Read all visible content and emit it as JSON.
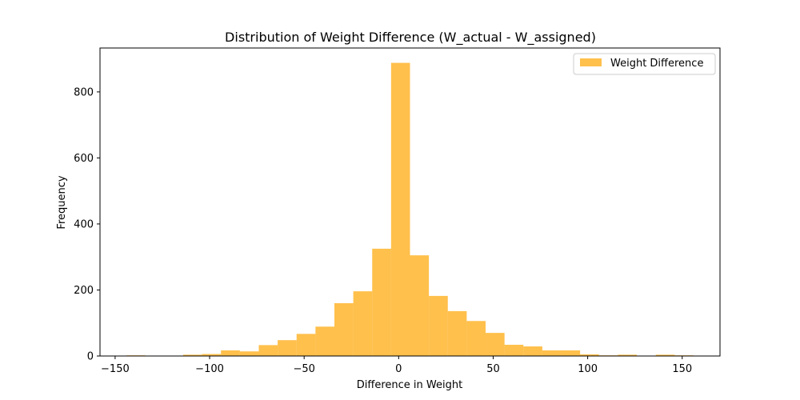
{
  "chart_data": {
    "type": "bar",
    "title": "Distribution of Weight Difference (W_actual - W_assigned)",
    "xlabel": "Difference in Weight",
    "ylabel": "Frequency",
    "xlim": [
      -158,
      170
    ],
    "ylim": [
      0,
      933
    ],
    "xticks": [
      -150,
      -100,
      -50,
      0,
      50,
      100,
      150
    ],
    "yticks": [
      0,
      200,
      400,
      600,
      800
    ],
    "grid": false,
    "legend_position": "top-right",
    "bar_color": "#ffa500",
    "bar_opacity": 0.7,
    "series": [
      {
        "name": "Weight Difference",
        "bins": [
          {
            "x0": -144,
            "x1": -134,
            "value": 2
          },
          {
            "x0": -134,
            "x1": -124,
            "value": 1
          },
          {
            "x0": -124,
            "x1": -114,
            "value": 1
          },
          {
            "x0": -114,
            "x1": -104,
            "value": 4
          },
          {
            "x0": -104,
            "x1": -94,
            "value": 6
          },
          {
            "x0": -94,
            "x1": -84,
            "value": 17
          },
          {
            "x0": -84,
            "x1": -74,
            "value": 14
          },
          {
            "x0": -74,
            "x1": -64,
            "value": 33
          },
          {
            "x0": -64,
            "x1": -54,
            "value": 48
          },
          {
            "x0": -54,
            "x1": -44,
            "value": 67
          },
          {
            "x0": -44,
            "x1": -34,
            "value": 89
          },
          {
            "x0": -34,
            "x1": -24,
            "value": 160
          },
          {
            "x0": -24,
            "x1": -14,
            "value": 196
          },
          {
            "x0": -14,
            "x1": -4,
            "value": 325
          },
          {
            "x0": -4,
            "x1": 6,
            "value": 888
          },
          {
            "x0": 6,
            "x1": 16,
            "value": 305
          },
          {
            "x0": 16,
            "x1": 26,
            "value": 182
          },
          {
            "x0": 26,
            "x1": 36,
            "value": 136
          },
          {
            "x0": 36,
            "x1": 46,
            "value": 106
          },
          {
            "x0": 46,
            "x1": 56,
            "value": 70
          },
          {
            "x0": 56,
            "x1": 66,
            "value": 34
          },
          {
            "x0": 66,
            "x1": 76,
            "value": 29
          },
          {
            "x0": 76,
            "x1": 86,
            "value": 17
          },
          {
            "x0": 86,
            "x1": 96,
            "value": 17
          },
          {
            "x0": 96,
            "x1": 106,
            "value": 5
          },
          {
            "x0": 106,
            "x1": 116,
            "value": 2
          },
          {
            "x0": 116,
            "x1": 126,
            "value": 4
          },
          {
            "x0": 126,
            "x1": 136,
            "value": 1
          },
          {
            "x0": 136,
            "x1": 146,
            "value": 4
          },
          {
            "x0": 146,
            "x1": 156,
            "value": 2
          }
        ]
      }
    ]
  }
}
